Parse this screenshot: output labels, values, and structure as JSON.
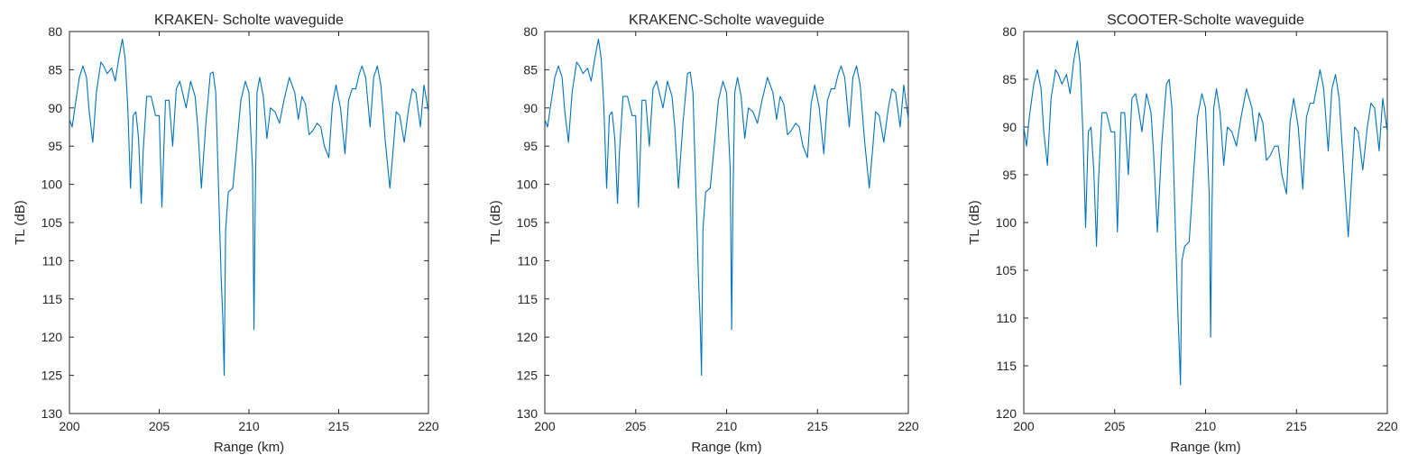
{
  "chart_data": [
    {
      "type": "line",
      "title": "KRAKEN- Scholte waveguide",
      "xlabel": "Range (km)",
      "ylabel": "TL (dB)",
      "xlim": [
        200,
        220
      ],
      "ylim": [
        80,
        130
      ],
      "y_reversed": true,
      "grid": false,
      "xticks": [
        "200",
        "205",
        "210",
        "215",
        "220"
      ],
      "yticks": [
        "80",
        "85",
        "90",
        "95",
        "100",
        "105",
        "110",
        "115",
        "120",
        "125",
        "130"
      ],
      "series": [
        {
          "color": "#0072bd",
          "x": [
            200.0,
            200.15,
            200.3,
            200.55,
            200.75,
            200.95,
            201.1,
            201.3,
            201.5,
            201.75,
            201.9,
            202.1,
            202.35,
            202.55,
            202.75,
            202.95,
            203.1,
            203.25,
            203.4,
            203.55,
            203.7,
            203.85,
            204.0,
            204.1,
            204.3,
            204.55,
            204.8,
            205.0,
            205.15,
            205.35,
            205.55,
            205.75,
            205.95,
            206.15,
            206.3,
            206.5,
            206.75,
            207.0,
            207.15,
            207.35,
            207.6,
            207.85,
            208.0,
            208.15,
            208.3,
            208.45,
            208.55,
            208.62,
            208.7,
            208.85,
            209.1,
            209.3,
            209.55,
            209.8,
            210.0,
            210.2,
            210.28,
            210.35,
            210.45,
            210.6,
            210.8,
            211.0,
            211.2,
            211.45,
            211.7,
            211.95,
            212.25,
            212.55,
            212.75,
            212.95,
            213.15,
            213.35,
            213.55,
            213.8,
            214.0,
            214.2,
            214.45,
            214.65,
            214.85,
            215.1,
            215.35,
            215.55,
            215.75,
            215.95,
            216.15,
            216.3,
            216.5,
            216.75,
            216.95,
            217.15,
            217.35,
            217.6,
            217.85,
            218.05,
            218.2,
            218.4,
            218.65,
            218.9,
            219.1,
            219.3,
            219.55,
            219.75,
            220.0
          ],
          "y": [
            91.5,
            92.5,
            90.0,
            86.0,
            84.5,
            86.0,
            90.5,
            94.5,
            88.0,
            84.0,
            84.5,
            85.5,
            84.8,
            86.5,
            83.5,
            81.0,
            83.5,
            90.0,
            100.5,
            91.0,
            90.5,
            94.0,
            102.5,
            96.0,
            88.5,
            88.5,
            91.0,
            91.0,
            103.0,
            89.0,
            89.0,
            95.0,
            87.5,
            86.5,
            88.0,
            90.0,
            86.5,
            88.5,
            92.5,
            100.5,
            92.0,
            85.5,
            85.3,
            88.0,
            100.0,
            112.0,
            118.0,
            125.0,
            106.0,
            101.0,
            100.5,
            95.5,
            89.0,
            86.5,
            88.0,
            98.0,
            119.0,
            102.0,
            88.0,
            86.0,
            88.5,
            94.0,
            90.0,
            90.5,
            92.0,
            89.0,
            86.0,
            88.0,
            91.5,
            88.5,
            89.5,
            93.5,
            93.0,
            92.0,
            92.5,
            95.0,
            96.5,
            89.5,
            87.0,
            90.0,
            96.0,
            89.0,
            87.5,
            87.5,
            85.5,
            84.5,
            86.0,
            92.5,
            86.0,
            84.5,
            87.0,
            94.5,
            100.5,
            95.0,
            90.5,
            91.0,
            94.5,
            90.0,
            87.5,
            88.0,
            92.5,
            87.0,
            90.5
          ]
        }
      ]
    },
    {
      "type": "line",
      "title": "KRAKENC-Scholte waveguide",
      "xlabel": "Range (km)",
      "ylabel": "TL (dB)",
      "xlim": [
        200,
        220
      ],
      "ylim": [
        80,
        130
      ],
      "y_reversed": true,
      "grid": false,
      "xticks": [
        "200",
        "205",
        "210",
        "215",
        "220"
      ],
      "yticks": [
        "80",
        "85",
        "90",
        "95",
        "100",
        "105",
        "110",
        "115",
        "120",
        "125",
        "130"
      ],
      "series": [
        {
          "color": "#0072bd",
          "x": [
            200.0,
            200.15,
            200.3,
            200.55,
            200.75,
            200.95,
            201.1,
            201.3,
            201.5,
            201.75,
            201.9,
            202.1,
            202.35,
            202.55,
            202.75,
            202.95,
            203.1,
            203.25,
            203.4,
            203.55,
            203.7,
            203.85,
            204.0,
            204.1,
            204.3,
            204.55,
            204.8,
            205.0,
            205.15,
            205.35,
            205.55,
            205.75,
            205.95,
            206.15,
            206.3,
            206.5,
            206.75,
            207.0,
            207.15,
            207.35,
            207.6,
            207.85,
            208.0,
            208.15,
            208.3,
            208.45,
            208.55,
            208.62,
            208.7,
            208.85,
            209.1,
            209.3,
            209.55,
            209.8,
            210.0,
            210.2,
            210.28,
            210.35,
            210.45,
            210.6,
            210.8,
            211.0,
            211.2,
            211.45,
            211.7,
            211.95,
            212.25,
            212.55,
            212.75,
            212.95,
            213.15,
            213.35,
            213.55,
            213.8,
            214.0,
            214.2,
            214.45,
            214.65,
            214.85,
            215.1,
            215.35,
            215.55,
            215.75,
            215.95,
            216.15,
            216.3,
            216.5,
            216.75,
            216.95,
            217.15,
            217.35,
            217.6,
            217.85,
            218.05,
            218.2,
            218.4,
            218.65,
            218.9,
            219.1,
            219.3,
            219.55,
            219.75,
            220.0
          ],
          "y": [
            91.5,
            92.5,
            90.0,
            86.0,
            84.5,
            86.0,
            90.5,
            94.5,
            88.0,
            84.0,
            84.5,
            85.5,
            84.8,
            86.5,
            83.5,
            81.0,
            83.5,
            90.0,
            100.5,
            91.0,
            90.5,
            94.0,
            102.5,
            96.0,
            88.5,
            88.5,
            91.0,
            91.0,
            103.0,
            89.0,
            89.0,
            95.0,
            87.5,
            86.5,
            88.0,
            90.0,
            86.5,
            88.5,
            92.5,
            100.5,
            92.0,
            85.5,
            85.3,
            88.0,
            100.0,
            112.0,
            118.0,
            125.0,
            106.0,
            101.0,
            100.5,
            95.5,
            89.0,
            86.5,
            88.0,
            98.0,
            119.0,
            102.0,
            88.0,
            86.0,
            88.5,
            94.0,
            90.0,
            90.5,
            92.0,
            89.0,
            86.0,
            88.0,
            91.5,
            88.5,
            89.5,
            93.5,
            93.0,
            92.0,
            92.5,
            95.0,
            96.5,
            89.5,
            87.0,
            90.0,
            96.0,
            89.0,
            87.5,
            87.5,
            85.5,
            84.5,
            86.0,
            92.5,
            86.0,
            84.5,
            87.0,
            94.5,
            100.5,
            95.0,
            90.5,
            91.0,
            94.5,
            90.0,
            87.5,
            88.0,
            92.5,
            87.0,
            91.5
          ]
        }
      ]
    },
    {
      "type": "line",
      "title": "SCOOTER-Scholte waveguide",
      "xlabel": "Range (km)",
      "ylabel": "TL (dB)",
      "xlim": [
        200,
        220
      ],
      "ylim": [
        80,
        120
      ],
      "y_reversed": true,
      "grid": false,
      "xticks": [
        "200",
        "205",
        "210",
        "215",
        "220"
      ],
      "yticks": [
        "80",
        "85",
        "90",
        "95",
        "100",
        "105",
        "110",
        "115",
        "120"
      ],
      "series": [
        {
          "color": "#0072bd",
          "x": [
            200.0,
            200.15,
            200.3,
            200.55,
            200.75,
            200.95,
            201.1,
            201.3,
            201.5,
            201.75,
            201.9,
            202.1,
            202.35,
            202.55,
            202.75,
            202.95,
            203.1,
            203.25,
            203.4,
            203.55,
            203.7,
            203.85,
            204.0,
            204.1,
            204.3,
            204.55,
            204.8,
            205.0,
            205.15,
            205.35,
            205.55,
            205.75,
            205.95,
            206.15,
            206.3,
            206.5,
            206.75,
            207.0,
            207.15,
            207.35,
            207.6,
            207.85,
            208.0,
            208.15,
            208.3,
            208.45,
            208.55,
            208.62,
            208.7,
            208.85,
            209.1,
            209.3,
            209.55,
            209.8,
            210.0,
            210.2,
            210.28,
            210.35,
            210.45,
            210.6,
            210.8,
            211.0,
            211.2,
            211.45,
            211.7,
            211.95,
            212.25,
            212.55,
            212.75,
            212.95,
            213.15,
            213.35,
            213.55,
            213.8,
            214.0,
            214.2,
            214.45,
            214.65,
            214.85,
            215.1,
            215.35,
            215.55,
            215.75,
            215.95,
            216.15,
            216.3,
            216.5,
            216.75,
            216.95,
            217.15,
            217.35,
            217.6,
            217.85,
            218.05,
            218.2,
            218.4,
            218.65,
            218.9,
            219.1,
            219.3,
            219.55,
            219.75,
            220.0
          ],
          "y": [
            90.0,
            92.0,
            89.0,
            85.5,
            84.0,
            86.0,
            90.5,
            94.0,
            87.0,
            84.0,
            84.5,
            85.5,
            84.5,
            86.5,
            83.0,
            81.0,
            83.5,
            90.5,
            100.5,
            90.5,
            90.0,
            94.5,
            102.5,
            96.0,
            88.5,
            88.5,
            90.5,
            90.5,
            101.0,
            88.5,
            88.5,
            95.0,
            87.0,
            86.5,
            88.0,
            90.5,
            86.5,
            88.5,
            93.0,
            101.0,
            91.5,
            85.5,
            85.0,
            88.0,
            98.0,
            108.0,
            113.0,
            117.0,
            104.0,
            102.5,
            102.0,
            96.0,
            89.0,
            86.5,
            88.0,
            97.0,
            112.0,
            99.0,
            88.0,
            86.0,
            88.5,
            94.0,
            90.0,
            90.5,
            92.0,
            89.0,
            86.0,
            88.0,
            91.5,
            88.5,
            89.5,
            93.5,
            93.0,
            92.0,
            92.0,
            95.0,
            97.0,
            89.5,
            87.0,
            90.0,
            96.5,
            89.0,
            87.5,
            87.5,
            85.5,
            84.0,
            86.0,
            92.5,
            86.0,
            84.5,
            87.0,
            94.5,
            101.5,
            95.0,
            90.0,
            90.5,
            94.5,
            90.0,
            87.5,
            88.0,
            92.5,
            87.0,
            90.5
          ]
        }
      ]
    }
  ]
}
